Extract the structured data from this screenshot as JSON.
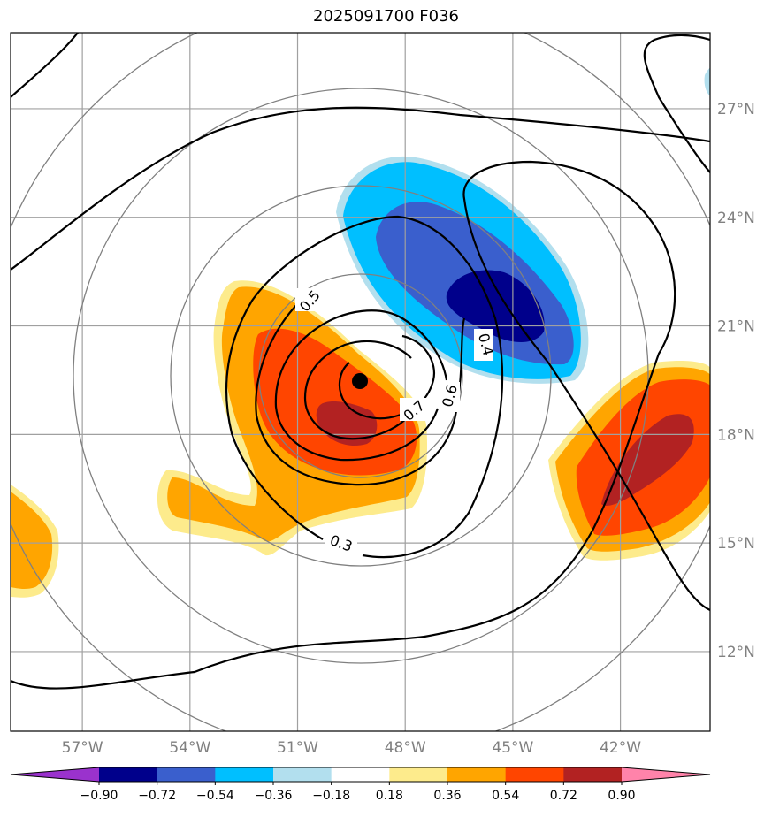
{
  "chart_data": {
    "type": "contour",
    "title": "2025091700 F036",
    "map": {
      "lon_range": [
        -59,
        -39.5
      ],
      "lat_range": [
        9.8,
        29.1
      ],
      "lon_ticks": [
        {
          "value": -57,
          "label": "57°W"
        },
        {
          "value": -54,
          "label": "54°W"
        },
        {
          "value": -51,
          "label": "51°W"
        },
        {
          "value": -48,
          "label": "48°W"
        },
        {
          "value": -45,
          "label": "45°W"
        },
        {
          "value": -42,
          "label": "42°W"
        }
      ],
      "lat_ticks": [
        {
          "value": 12,
          "label": "12°N"
        },
        {
          "value": 15,
          "label": "15°N"
        },
        {
          "value": 18,
          "label": "18°N"
        },
        {
          "value": 21,
          "label": "21°N"
        },
        {
          "value": 24,
          "label": "24°N"
        },
        {
          "value": 27,
          "label": "27°N"
        }
      ],
      "grid": true,
      "center_marker": {
        "lon": -49,
        "lat": 19.7
      }
    },
    "contour_labels": [
      "0.3",
      "0.4",
      "0.5",
      "0.6",
      "0.7"
    ],
    "colorbar": {
      "ticks": [
        "−0.90",
        "−0.72",
        "−0.54",
        "−0.36",
        "−0.18",
        "0.18",
        "0.36",
        "0.54",
        "0.72",
        "0.90"
      ],
      "colors": [
        "#9a32cd",
        "#00008b",
        "#3a5fcd",
        "#00bfff",
        "#b2dfee",
        "#ffffff",
        "#fdeb8c",
        "#ffa500",
        "#ff4500",
        "#b22222",
        "#ff83aa"
      ]
    }
  }
}
